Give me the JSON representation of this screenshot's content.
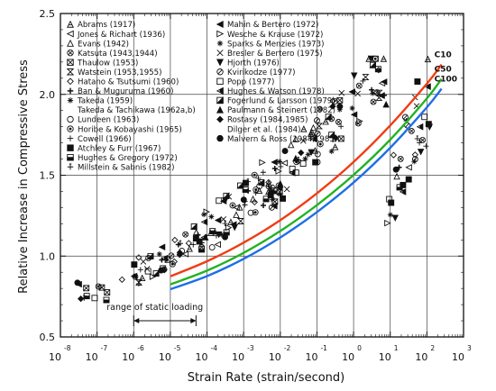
{
  "chart_data": {
    "type": "scatter",
    "xlabel": "Strain Rate (strain/second)",
    "ylabel": "Relative Increase in Compressive Stress",
    "x_scale": "log",
    "x_ticks": [
      {
        "base": "10",
        "exp": "-8"
      },
      {
        "base": "10",
        "exp": "-7"
      },
      {
        "base": "10",
        "exp": "-6"
      },
      {
        "base": "10",
        "exp": "-5"
      },
      {
        "base": "10",
        "exp": "-4"
      },
      {
        "base": "10",
        "exp": "-3"
      },
      {
        "base": "10",
        "exp": "-2"
      },
      {
        "base": "10",
        "exp": "-1"
      },
      {
        "base": "10",
        "exp": "0"
      },
      {
        "base": "10",
        "exp": "1"
      },
      {
        "base": "10",
        "exp": "2"
      },
      {
        "base": "10",
        "exp": "3"
      }
    ],
    "xlim": [
      -8,
      3
    ],
    "y_ticks": [
      "0.5",
      "1.0",
      "1.5",
      "2.0",
      "2.5"
    ],
    "ylim": [
      0.5,
      2.5
    ],
    "grid": "major",
    "legend_left": [
      {
        "marker": "triangle-up-open",
        "label": "Abrams (1917)"
      },
      {
        "marker": "triangle-left-open",
        "label": "Jones & Richart (1936)"
      },
      {
        "marker": "triangle-open",
        "label": "Evans (1942)"
      },
      {
        "marker": "x-circle",
        "label": "Katsuta (1943,1944)"
      },
      {
        "marker": "box-x",
        "label": "Thaulow (1953)"
      },
      {
        "marker": "hourglass",
        "label": "Watstein (1953,1955)"
      },
      {
        "marker": "diamond-open",
        "label": "Hatano & Tsutsumi (1960)"
      },
      {
        "marker": "plus",
        "label": "Ban & Muguruma (1960)"
      },
      {
        "marker": "star",
        "label": "Takeda (1959)"
      },
      {
        "marker": "",
        "label": "Takeda & Tachikawa (1962a,b)"
      },
      {
        "marker": "circle-open",
        "label": "Lundeen (1963)"
      },
      {
        "marker": "circle-dot",
        "label": "Horibe & Kobayashi (1965)"
      },
      {
        "marker": "plus-thin",
        "label": "Cowell (1966)"
      },
      {
        "marker": "square-filled",
        "label": "Atchley & Furr (1967)"
      },
      {
        "marker": "square-half",
        "label": "Hughes & Gregory (1972)"
      },
      {
        "marker": "cross",
        "label": "Millstein & Sabnis (1982)"
      }
    ],
    "legend_right": [
      {
        "marker": "triangle-left-filled",
        "label": "Mahin & Bertero (1972)"
      },
      {
        "marker": "triangle-right-open",
        "label": "Wesche & Krause (1972)"
      },
      {
        "marker": "asterisk",
        "label": "Sparks & Menzies (1973)"
      },
      {
        "marker": "x",
        "label": "Bresler & Bertero (1975)"
      },
      {
        "marker": "triangle-down-filled",
        "label": "Hjorth (1976)"
      },
      {
        "marker": "circle-slash",
        "label": "Kvirikodze (1977)"
      },
      {
        "marker": "square-open",
        "label": "Popp (1977)"
      },
      {
        "marker": "triangle-left-half",
        "label": "Hughes & Watson (1978)"
      },
      {
        "marker": "square-split",
        "label": "Fogerlund & Larsson (1979)"
      },
      {
        "marker": "triangle-up-filled",
        "label": "Paulmann & Steinert (1982)"
      },
      {
        "marker": "diamond-filled",
        "label": "Rostasy (1984,1985)"
      },
      {
        "marker": "",
        "label": "Dilger et al. (1984)"
      },
      {
        "marker": "circle-filled",
        "label": "Malvern & Ross (1984,1985)"
      }
    ],
    "series": [
      {
        "name": "C10",
        "color": "#f03c14",
        "x": [
          -5,
          -4,
          -3,
          -2,
          -1,
          0,
          1,
          2,
          2.4
        ],
        "y": [
          0.875,
          0.968,
          1.083,
          1.222,
          1.388,
          1.582,
          1.808,
          2.066,
          2.185
        ]
      },
      {
        "name": "C50",
        "color": "#22b222",
        "x": [
          -5,
          -4,
          -3,
          -2,
          -1,
          0,
          1,
          2,
          2.4
        ],
        "y": [
          0.825,
          0.91,
          1.02,
          1.155,
          1.315,
          1.502,
          1.72,
          1.975,
          2.095
        ]
      },
      {
        "name": "C100",
        "color": "#1e6ee6",
        "x": [
          -5,
          -4,
          -3,
          -2,
          -1,
          0,
          1,
          2,
          2.4
        ],
        "y": [
          0.795,
          0.876,
          0.983,
          1.115,
          1.272,
          1.455,
          1.67,
          1.92,
          2.035
        ]
      }
    ],
    "annotations": [
      {
        "text": "range of static loading",
        "x_from": -6,
        "x_to": -4.3,
        "y": 0.6
      }
    ]
  }
}
